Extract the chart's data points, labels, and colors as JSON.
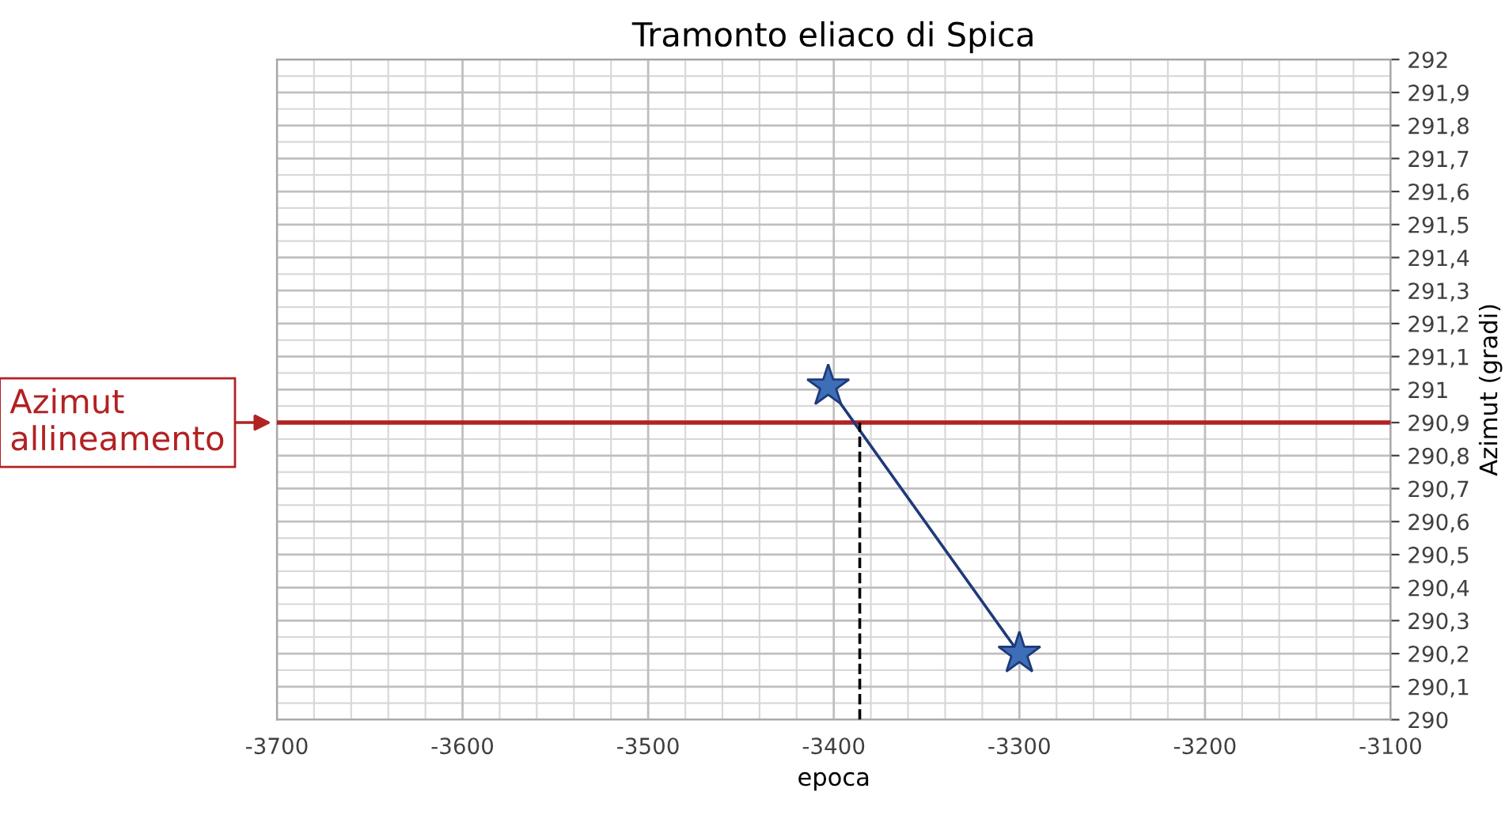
{
  "chart_data": {
    "type": "line",
    "title": "Tramonto eliaco di Spica",
    "xlabel": "epoca",
    "ylabel": "Azimut (gradi)",
    "series": [
      {
        "color": "#1f3a7a",
        "x": [
          -3403,
          -3300
        ],
        "values": [
          291.01,
          290.2
        ],
        "marker": "star",
        "line_style": "solid"
      },
      {
        "color": "#000000",
        "x": [
          -3386,
          -3386
        ],
        "values": [
          290,
          290.9
        ],
        "marker": "none",
        "line_style": "dashed"
      }
    ],
    "ref_lines": [
      {
        "axis": "y",
        "value": 290.9,
        "label": "Azimut allineamento",
        "color": "#b22222",
        "line_style": "solid"
      }
    ],
    "xlim": [
      -3700,
      -3100
    ],
    "xticks": [
      -3700,
      -3600,
      -3500,
      -3400,
      -3300,
      -3200,
      -3100
    ],
    "ylim": [
      290,
      292
    ],
    "yticks": [
      {
        "value": 290,
        "label": "290"
      },
      {
        "value": 290.1,
        "label": "290,1"
      },
      {
        "value": 290.2,
        "label": "290,2"
      },
      {
        "value": 290.3,
        "label": "290,3"
      },
      {
        "value": 290.4,
        "label": "290,4"
      },
      {
        "value": 290.5,
        "label": "290,5"
      },
      {
        "value": 290.6,
        "label": "290,6"
      },
      {
        "value": 290.7,
        "label": "290,7"
      },
      {
        "value": 290.8,
        "label": "290,8"
      },
      {
        "value": 290.9,
        "label": "290,9"
      },
      {
        "value": 291,
        "label": "291"
      },
      {
        "value": 291.1,
        "label": "291,1"
      },
      {
        "value": 291.2,
        "label": "291,2"
      },
      {
        "value": 291.3,
        "label": "291,3"
      },
      {
        "value": 291.4,
        "label": "291,4"
      },
      {
        "value": 291.5,
        "label": "291,5"
      },
      {
        "value": 291.6,
        "label": "291,6"
      },
      {
        "value": 291.7,
        "label": "291,7"
      },
      {
        "value": 291.8,
        "label": "291,8"
      },
      {
        "value": 291.9,
        "label": "291,9"
      },
      {
        "value": 292,
        "label": "292"
      }
    ],
    "grid": true
  }
}
